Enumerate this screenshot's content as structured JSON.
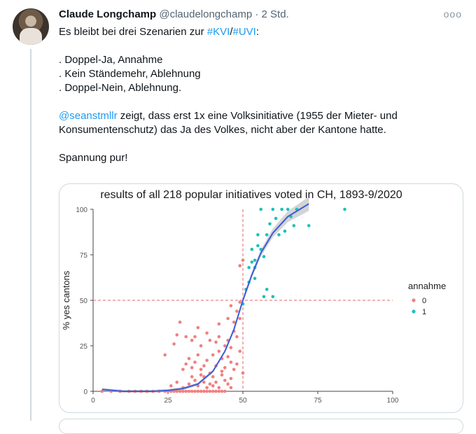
{
  "tweet": {
    "author_name": "Claude Longchamp",
    "handle": "@claudelongchamp",
    "separator": "·",
    "time": "2 Std.",
    "more_label": "ooo",
    "line1_prefix": "Es bleibt bei drei Szenarien zur ",
    "hashtag1": "#KVI",
    "slash": "/",
    "hashtag2": "#UVI",
    "line1_suffix": ":",
    "scenarios": [
      ". Doppel-Ja, Annahme",
      ". Kein Ständemehr, Ablehnung",
      ". Doppel-Nein, Ablehnung."
    ],
    "mention": "@seanstmllr",
    "mention_text": " zeigt, dass erst 1x eine Volksinitiative (1955 der Mieter- und Konsumentenschutz) das Ja des Volkes, nicht aber der Kantone hatte.",
    "closing": "Spannung pur!"
  },
  "chart_data": {
    "type": "scatter",
    "title": "results of all 218 popular initiatives voted in CH, 1893-9/2020",
    "xlabel": "",
    "ylabel": "% yes cantons",
    "xlim": [
      0,
      100
    ],
    "ylim": [
      0,
      100
    ],
    "xticks": [
      "0",
      "25",
      "50",
      "75",
      "100"
    ],
    "yticks": [
      "0",
      "25",
      "50",
      "75",
      "100"
    ],
    "reference_lines": {
      "x": 50,
      "y": 50,
      "style": "dashed",
      "color": "#e06666"
    },
    "legend": {
      "title": "annahme",
      "position": "right",
      "entries": [
        "0",
        "1"
      ]
    },
    "colors": {
      "0": "#f08080",
      "1": "#1fc0b8",
      "fit": "#3b5bdb",
      "band": "#b0b0b0"
    },
    "series": [
      {
        "name": "0",
        "points": [
          [
            3,
            0
          ],
          [
            6,
            0
          ],
          [
            9,
            0
          ],
          [
            12,
            0
          ],
          [
            14,
            0
          ],
          [
            16,
            0
          ],
          [
            18,
            0
          ],
          [
            20,
            0
          ],
          [
            22,
            0
          ],
          [
            24,
            0
          ],
          [
            25,
            0
          ],
          [
            26,
            0
          ],
          [
            27,
            0
          ],
          [
            28,
            0
          ],
          [
            29,
            0
          ],
          [
            30,
            0
          ],
          [
            31,
            0
          ],
          [
            32,
            0
          ],
          [
            33,
            0
          ],
          [
            34,
            0
          ],
          [
            35,
            0
          ],
          [
            36,
            0
          ],
          [
            37,
            0
          ],
          [
            38,
            0
          ],
          [
            39,
            0
          ],
          [
            40,
            0
          ],
          [
            41,
            0
          ],
          [
            42,
            0
          ],
          [
            43,
            0
          ],
          [
            44,
            0
          ],
          [
            26,
            3
          ],
          [
            28,
            5
          ],
          [
            30,
            2
          ],
          [
            32,
            4
          ],
          [
            33,
            8
          ],
          [
            34,
            6
          ],
          [
            35,
            3
          ],
          [
            36,
            9
          ],
          [
            37,
            5
          ],
          [
            38,
            2
          ],
          [
            30,
            12
          ],
          [
            31,
            15
          ],
          [
            32,
            18
          ],
          [
            33,
            13
          ],
          [
            34,
            16
          ],
          [
            35,
            20
          ],
          [
            36,
            12
          ],
          [
            37,
            14
          ],
          [
            38,
            17
          ],
          [
            39,
            10
          ],
          [
            40,
            3
          ],
          [
            40,
            8
          ],
          [
            41,
            5
          ],
          [
            42,
            2
          ],
          [
            43,
            9
          ],
          [
            44,
            6
          ],
          [
            45,
            4
          ],
          [
            46,
            2
          ],
          [
            39,
            4
          ],
          [
            37,
            8
          ],
          [
            40,
            20
          ],
          [
            41,
            14
          ],
          [
            42,
            22
          ],
          [
            43,
            18
          ],
          [
            44,
            25
          ],
          [
            45,
            28
          ],
          [
            46,
            16
          ],
          [
            47,
            12
          ],
          [
            48,
            30
          ],
          [
            49,
            22
          ],
          [
            41,
            27
          ],
          [
            42,
            30
          ],
          [
            43,
            11
          ],
          [
            44,
            13
          ],
          [
            45,
            19
          ],
          [
            46,
            24
          ],
          [
            47,
            33
          ],
          [
            48,
            15
          ],
          [
            49,
            40
          ],
          [
            47,
            38
          ],
          [
            29,
            38
          ],
          [
            35,
            35
          ],
          [
            38,
            32
          ],
          [
            42,
            37
          ],
          [
            46,
            47
          ],
          [
            49,
            49
          ],
          [
            24,
            20
          ],
          [
            27,
            26
          ],
          [
            33,
            28
          ],
          [
            36,
            25
          ],
          [
            39,
            28
          ],
          [
            48,
            44
          ],
          [
            49,
            69
          ],
          [
            50,
            72
          ],
          [
            45,
            40
          ],
          [
            50,
            10
          ],
          [
            46,
            7
          ],
          [
            34,
            30
          ],
          [
            28,
            31
          ],
          [
            31,
            30
          ]
        ]
      },
      {
        "name": "1",
        "points": [
          [
            50,
            48
          ],
          [
            51,
            56
          ],
          [
            52,
            60
          ],
          [
            52,
            68
          ],
          [
            53,
            71
          ],
          [
            53,
            78
          ],
          [
            54,
            62
          ],
          [
            54,
            72
          ],
          [
            55,
            80
          ],
          [
            55,
            86
          ],
          [
            56,
            100
          ],
          [
            56,
            78
          ],
          [
            57,
            74
          ],
          [
            58,
            86
          ],
          [
            59,
            92
          ],
          [
            60,
            100
          ],
          [
            61,
            95
          ],
          [
            62,
            86
          ],
          [
            63,
            100
          ],
          [
            64,
            88
          ],
          [
            65,
            100
          ],
          [
            66,
            96
          ],
          [
            67,
            91
          ],
          [
            68,
            100
          ],
          [
            72,
            91
          ],
          [
            84,
            100
          ],
          [
            60,
            52
          ],
          [
            57,
            52
          ],
          [
            58,
            56
          ],
          [
            54,
            68
          ]
        ]
      }
    ],
    "fit_curve": [
      [
        3,
        1
      ],
      [
        10,
        0
      ],
      [
        20,
        0
      ],
      [
        25,
        0.5
      ],
      [
        30,
        1.5
      ],
      [
        35,
        4
      ],
      [
        40,
        11
      ],
      [
        44,
        22
      ],
      [
        47,
        34
      ],
      [
        50,
        50
      ],
      [
        53,
        64
      ],
      [
        56,
        76
      ],
      [
        60,
        87
      ],
      [
        65,
        96
      ],
      [
        70,
        101
      ],
      [
        72,
        103
      ]
    ]
  }
}
